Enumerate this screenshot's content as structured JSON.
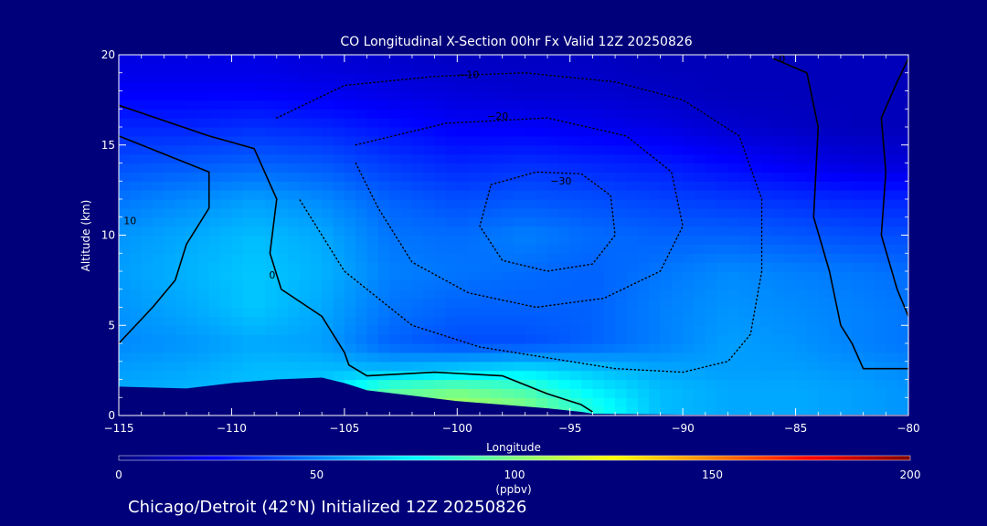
{
  "chart_data": {
    "type": "heatmap",
    "title": "CO Longitudinal X-Section 00hr  Fx Valid 12Z 20250826",
    "subtitle": "Chicago/Detroit (42°N) Initialized 12Z 20250826",
    "xlabel": "Longitude",
    "ylabel": "Altitude (km)",
    "xlim": [
      -115,
      -80
    ],
    "ylim": [
      0,
      20
    ],
    "x_ticks": [
      -115,
      -110,
      -105,
      -100,
      -95,
      -90,
      -85,
      -80
    ],
    "x_tick_labels": [
      "−115",
      "−110",
      "−105",
      "−100",
      "−95",
      "−90",
      "−85",
      "−80"
    ],
    "y_ticks": [
      0,
      5,
      10,
      15,
      20
    ],
    "y_tick_labels": [
      "0",
      "5",
      "10",
      "15",
      "20"
    ],
    "colorbar": {
      "min": 0,
      "max": 200,
      "ticks": [
        0,
        50,
        100,
        150,
        200
      ],
      "tick_labels": [
        "0",
        "50",
        "100",
        "150",
        "200"
      ],
      "unit": "(ppbv)",
      "colors": [
        "#00007a",
        "#0000ff",
        "#0080ff",
        "#00ffff",
        "#80ff80",
        "#ffff00",
        "#ff8000",
        "#ff0000",
        "#800000"
      ]
    },
    "field_note": "CO concentration field; values read from the fill colours",
    "grid_lon": [
      -115,
      -112,
      -109,
      -106,
      -103,
      -100,
      -97,
      -94,
      -91,
      -88,
      -85,
      -82,
      -80
    ],
    "grid_alt": [
      0.5,
      1.5,
      2.5,
      4,
      6,
      8,
      10,
      12,
      14,
      16,
      18,
      19.5
    ],
    "values": [
      [
        60,
        62,
        64,
        66,
        100,
        108,
        100,
        80,
        62,
        58,
        58,
        56,
        54
      ],
      [
        58,
        60,
        62,
        66,
        90,
        96,
        88,
        72,
        62,
        58,
        58,
        56,
        54
      ],
      [
        56,
        58,
        62,
        62,
        62,
        66,
        70,
        64,
        58,
        56,
        56,
        54,
        52
      ],
      [
        52,
        54,
        58,
        56,
        44,
        40,
        40,
        44,
        50,
        56,
        54,
        50,
        48
      ],
      [
        54,
        58,
        64,
        58,
        48,
        44,
        44,
        44,
        50,
        54,
        52,
        50,
        48
      ],
      [
        56,
        60,
        64,
        60,
        50,
        48,
        46,
        44,
        48,
        52,
        50,
        48,
        46
      ],
      [
        54,
        58,
        62,
        58,
        48,
        46,
        50,
        46,
        44,
        44,
        42,
        40,
        40
      ],
      [
        48,
        52,
        56,
        52,
        44,
        40,
        42,
        40,
        38,
        36,
        34,
        32,
        32
      ],
      [
        40,
        42,
        44,
        42,
        36,
        32,
        34,
        32,
        30,
        26,
        22,
        18,
        18
      ],
      [
        32,
        32,
        34,
        32,
        28,
        24,
        24,
        22,
        20,
        16,
        14,
        12,
        12
      ],
      [
        24,
        24,
        24,
        22,
        20,
        18,
        16,
        16,
        14,
        12,
        12,
        12,
        12
      ],
      [
        20,
        20,
        20,
        18,
        16,
        14,
        14,
        14,
        12,
        12,
        12,
        12,
        12
      ]
    ],
    "terrain": {
      "lon": [
        -115,
        -112,
        -110,
        -108,
        -106,
        -105,
        -104,
        -102,
        -100,
        -98,
        -96,
        -94.5,
        -94,
        -90,
        -85,
        -80
      ],
      "alt": [
        1.6,
        1.5,
        1.8,
        2.0,
        2.1,
        1.8,
        1.4,
        1.1,
        0.8,
        0.6,
        0.4,
        0.2,
        0.1,
        0.05,
        0.05,
        0.05
      ]
    },
    "contours": [
      {
        "style": "solid",
        "label": "10",
        "label_at": [
          -114.5,
          10.6
        ],
        "lon": [
          -115,
          -113,
          -111,
          -111,
          -112,
          -112.5,
          -113.5,
          -115
        ],
        "alt": [
          15.5,
          14.5,
          13.5,
          11.5,
          9.5,
          7.5,
          6.0,
          4.0
        ]
      },
      {
        "style": "solid",
        "label": "0",
        "label_at": [
          -108.2,
          7.6
        ],
        "lon": [
          -115,
          -111,
          -109,
          -108,
          -108.3,
          -107.8,
          -106,
          -105,
          -104.8,
          -104,
          -101,
          -98,
          -96,
          -94.5,
          -94
        ],
        "alt": [
          17.2,
          15.5,
          14.8,
          12.0,
          9.0,
          7.0,
          5.5,
          3.5,
          2.8,
          2.2,
          2.4,
          2.2,
          1.2,
          0.6,
          0.2
        ]
      },
      {
        "style": "solid",
        "label": "0",
        "label_at": [
          -85.6,
          19.6
        ],
        "lon": [
          -86,
          -84.5,
          -84,
          -84.2,
          -83.5,
          -83,
          -82.5,
          -82,
          -80
        ],
        "alt": [
          19.8,
          19.0,
          16.0,
          11.0,
          8.0,
          5.0,
          4.0,
          2.6,
          2.6
        ]
      },
      {
        "style": "solid",
        "label": "",
        "label_at": null,
        "lon": [
          -80,
          -80.5,
          -81.2,
          -81,
          -81.2,
          -80.5,
          -80
        ],
        "alt": [
          19.8,
          18.5,
          16.5,
          13.5,
          10.0,
          7.0,
          5.5
        ]
      },
      {
        "style": "dotted",
        "label": "−10",
        "label_at": [
          -99.5,
          18.7
        ],
        "lon": [
          -108,
          -105,
          -101,
          -97,
          -93,
          -90,
          -87.5,
          -86.5,
          -86.5,
          -87,
          -88,
          -90,
          -93,
          -96,
          -99,
          -102,
          -105,
          -107
        ],
        "alt": [
          16.5,
          18.3,
          18.8,
          19.0,
          18.5,
          17.5,
          15.5,
          12.0,
          8.0,
          4.5,
          3.0,
          2.4,
          2.6,
          3.2,
          3.8,
          5.0,
          8.0,
          12.0
        ]
      },
      {
        "style": "dotted",
        "label": "−20",
        "label_at": [
          -98.2,
          16.4
        ],
        "lon": [
          -104.5,
          -100.5,
          -96,
          -92.5,
          -90.5,
          -90,
          -91,
          -93.5,
          -96.5,
          -99.5,
          -102,
          -103.5,
          -104.5
        ],
        "alt": [
          15.0,
          16.2,
          16.5,
          15.5,
          13.5,
          10.5,
          8.0,
          6.5,
          6.0,
          6.8,
          8.5,
          11.5,
          14.0
        ]
      },
      {
        "style": "dotted",
        "label": "−30",
        "label_at": [
          -95.4,
          12.8
        ],
        "lon": [
          -98.5,
          -96.5,
          -94.5,
          -93.2,
          -93.0,
          -94.0,
          -96.0,
          -98.0,
          -99.0,
          -98.5
        ],
        "alt": [
          12.8,
          13.5,
          13.4,
          12.2,
          10.0,
          8.4,
          8.0,
          8.6,
          10.5,
          12.8
        ]
      }
    ]
  }
}
